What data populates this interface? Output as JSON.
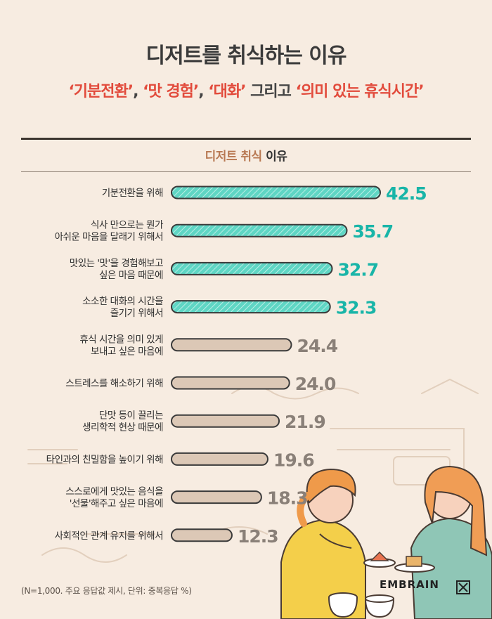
{
  "title": "디저트를 취식하는 이유",
  "subtitle": {
    "part1": "기분전환",
    "sep1": ",",
    "part2": "맛 경험",
    "sep2": ",",
    "part3": "대화",
    "middle": "그리고",
    "part4": "의미 있는 휴식시간"
  },
  "chart_data": {
    "type": "bar",
    "title_prefix": "디저트 취식",
    "title_suffix": "이유",
    "categories": [
      [
        "기분전환을 위해"
      ],
      [
        "식사 만으로는 뭔가",
        "아쉬운 마음을 달래기 위해서"
      ],
      [
        "맛있는 '맛'을 경험해보고",
        "싶은 마음 때문에"
      ],
      [
        "소소한 대화의 시간을",
        "즐기기 위해서"
      ],
      [
        "휴식 시간을 의미 있게",
        "보내고 싶은 마음에"
      ],
      [
        "스트레스를 해소하기 위해"
      ],
      [
        "단맛 등이 끌리는",
        "생리학적 현상 때문에"
      ],
      [
        "타인과의 친밀함을 높이기 위해"
      ],
      [
        "스스로에게 맛있는 음식을",
        "'선물'해주고 싶은 마음에"
      ],
      [
        "사회적인 관계 유지를 위해서"
      ]
    ],
    "values": [
      42.5,
      35.7,
      32.7,
      32.3,
      24.4,
      24.0,
      21.9,
      19.6,
      18.3,
      12.3
    ],
    "value_labels": [
      "42.5",
      "35.7",
      "32.7",
      "32.3",
      "24.4",
      "24.0",
      "21.9",
      "19.6",
      "18.3",
      "12.3"
    ],
    "highlight_count": 4,
    "colors": {
      "highlight": "#5fd6c4",
      "highlight_label": "#19b5a8",
      "normal": "#dcc8b6",
      "normal_label": "#8a8078",
      "stroke": "#3a3a3a"
    }
  },
  "footnote": "(N=1,000. 주요 응답값 제시, 단위: 중복응답 %)",
  "brand": "EMBRAIN"
}
